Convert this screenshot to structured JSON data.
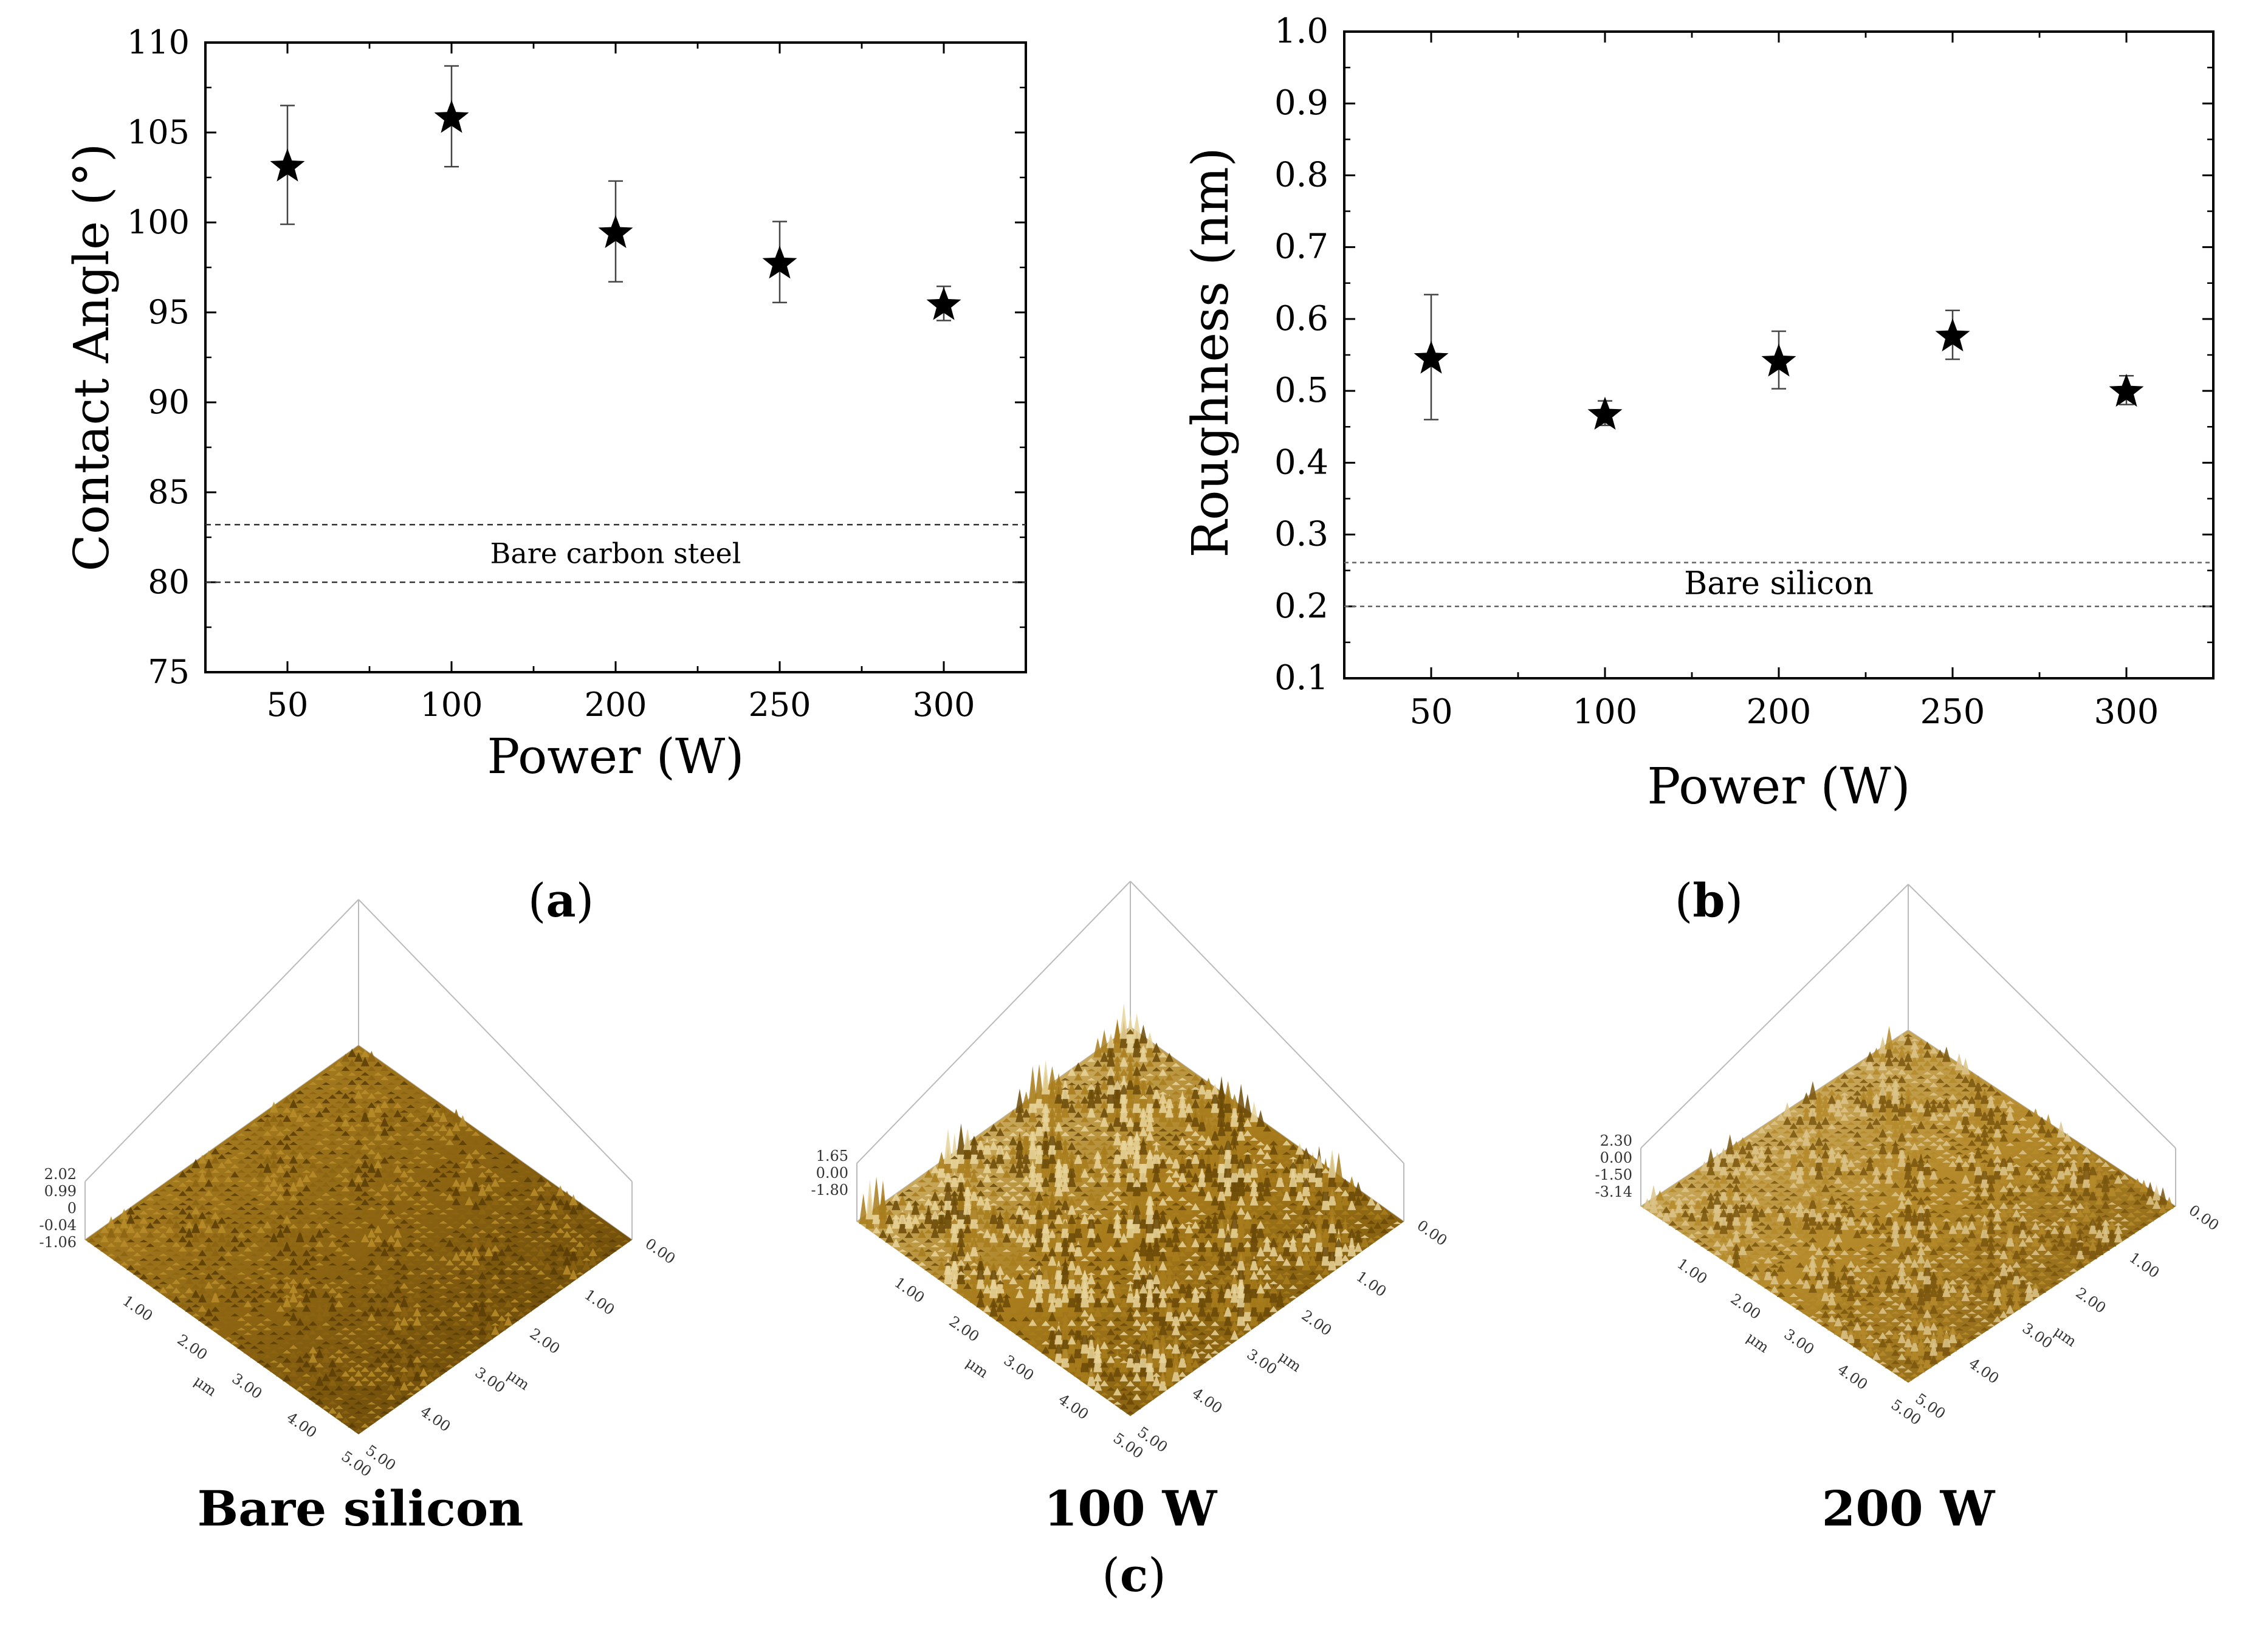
{
  "chart_data": [
    {
      "id": "a",
      "type": "scatter",
      "marker": "star",
      "panel_label": "a",
      "categories": [
        "50",
        "100",
        "200",
        "250",
        "300"
      ],
      "values": [
        103.2,
        105.9,
        99.5,
        97.8,
        95.5
      ],
      "errors": [
        3.3,
        2.8,
        2.8,
        2.25,
        0.95
      ],
      "xlabel": "Power (W)",
      "ylabel": "Contact Angle (°)",
      "ylim": [
        75,
        110
      ],
      "yticks": [
        75,
        80,
        85,
        90,
        95,
        100,
        105,
        110
      ],
      "reference_band": {
        "label": "Bare carbon steel",
        "low": 80.0,
        "high": 83.2
      }
    },
    {
      "id": "b",
      "type": "scatter",
      "marker": "star",
      "panel_label": "b",
      "categories": [
        "50",
        "100",
        "200",
        "250",
        "300"
      ],
      "values": [
        0.547,
        0.469,
        0.543,
        0.578,
        0.501
      ],
      "errors": [
        0.087,
        0.017,
        0.04,
        0.034,
        0.02
      ],
      "xlabel": "Power (W)",
      "ylabel": "Roughness (nm)",
      "ylim": [
        0.1,
        1.0
      ],
      "yticks": [
        0.1,
        0.2,
        0.3,
        0.4,
        0.5,
        0.6,
        0.7,
        0.8,
        0.9,
        1.0
      ],
      "reference_band": {
        "label": "Bare silicon",
        "low": 0.2,
        "high": 0.261
      }
    }
  ],
  "afm": {
    "panel_label": "c",
    "surfaces": [
      {
        "caption": "Bare silicon",
        "z_labels": [
          "2.02",
          "0.99",
          "0",
          "-0.04",
          "-1.06"
        ],
        "x_labels": [
          "1.00",
          "2.00",
          "3.00",
          "4.00",
          "5.00"
        ],
        "y_labels": [
          "1.00",
          "2.00",
          "3.00",
          "4.00",
          "5.00"
        ],
        "corner_label": "0.00",
        "unit": "μm",
        "colors": [
          "#5a3d06",
          "#8c6412",
          "#b98d2a"
        ]
      },
      {
        "caption": "100 W",
        "z_labels": [
          "1.65",
          "0.00",
          "-1.80"
        ],
        "x_labels": [
          "1.00",
          "2.00",
          "3.00",
          "4.00",
          "5.00"
        ],
        "y_labels": [
          "1.00",
          "2.00",
          "3.00",
          "4.00",
          "5.00"
        ],
        "corner_label": "0.00",
        "unit": "μm",
        "colors": [
          "#6b4a08",
          "#a87c1c",
          "#e8d49a"
        ]
      },
      {
        "caption": "200 W",
        "z_labels": [
          "2.30",
          "0.00",
          "-1.50",
          "-3.14"
        ],
        "x_labels": [
          "1.00",
          "2.00",
          "3.00",
          "4.00",
          "5.00"
        ],
        "y_labels": [
          "1.00",
          "2.00",
          "3.00",
          "4.00",
          "5.00"
        ],
        "corner_label": "0.00",
        "unit": "μm",
        "colors": [
          "#7a560e",
          "#b4892a",
          "#dcc489"
        ]
      }
    ]
  }
}
